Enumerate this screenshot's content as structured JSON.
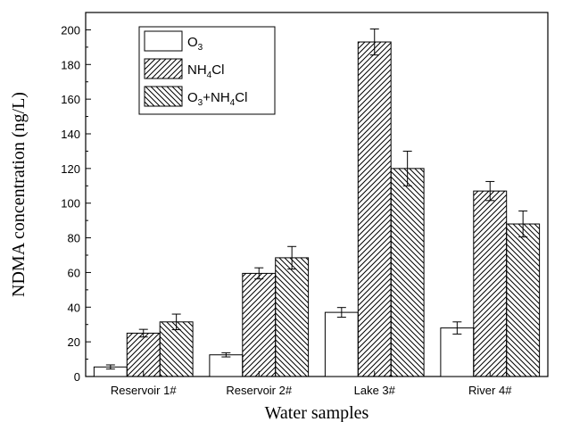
{
  "chart_data": {
    "type": "bar",
    "title": "",
    "xlabel": "Water samples",
    "ylabel": "NDMA concentration (ng/L)",
    "ylim": [
      0,
      210
    ],
    "yticks": [
      0,
      20,
      40,
      60,
      80,
      100,
      120,
      140,
      160,
      180,
      200
    ],
    "categories": [
      "Reservoir 1#",
      "Reservoir 2#",
      "Lake 3#",
      "River 4#"
    ],
    "series": [
      {
        "name": "O3",
        "legend_main": "O",
        "legend_sub": "3",
        "fill": "plain",
        "values": [
          5.5,
          12.5,
          37,
          28
        ],
        "errors": [
          1.2,
          1.2,
          2.8,
          3.5
        ]
      },
      {
        "name": "NH4Cl",
        "legend_main": "NH",
        "legend_sub": "4",
        "legend_tail": "Cl",
        "fill": "hatch-forward",
        "values": [
          25,
          59.5,
          193,
          107
        ],
        "errors": [
          2.2,
          3.2,
          7.5,
          5.5
        ]
      },
      {
        "name": "O3+NH4Cl",
        "legend_main": "O",
        "legend_sub": "3",
        "legend_mid": "+NH",
        "legend_sub2": "4",
        "legend_tail": "Cl",
        "fill": "hatch-backward",
        "values": [
          31.5,
          68.5,
          120,
          88
        ],
        "errors": [
          4.5,
          6.5,
          10,
          7.5
        ]
      }
    ],
    "grid": false,
    "legend_position": "top-left"
  }
}
